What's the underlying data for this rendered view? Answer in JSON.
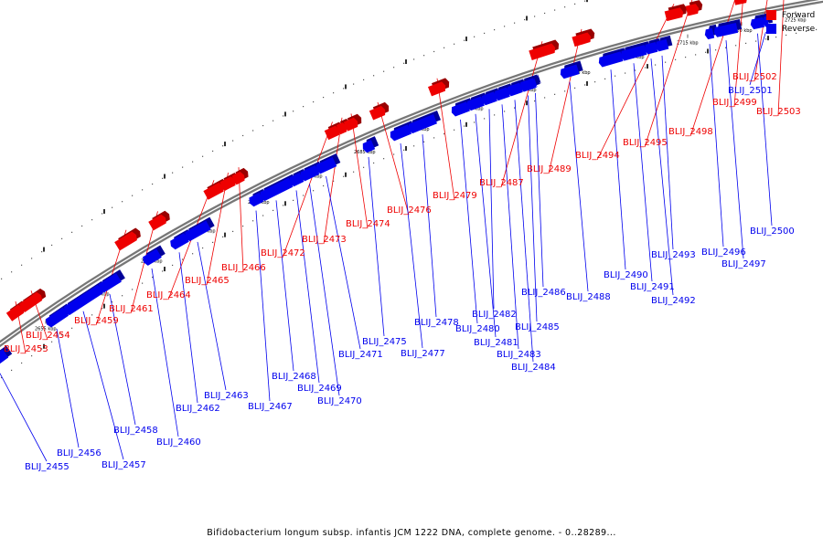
{
  "colors": {
    "forward": "#ee0000",
    "reverse": "#0000ee",
    "forward_side": "#990000",
    "reverse_side": "#000099",
    "backbone": "#777777"
  },
  "legend": {
    "forward": {
      "label": "Forward",
      "color": "#ee0000"
    },
    "reverse": {
      "label": "Reverse",
      "color": "#0000ee"
    }
  },
  "caption": "Bifidobacterium longum subsp. infantis JCM 1222 DNA, complete genome. - 0..28289...",
  "tick_labels": [
    "2655 kbp",
    "2660 kbp",
    "2665 kbp",
    "2670 kbp",
    "2675 kbp",
    "2680 kbp",
    "2685 kbp",
    "2690 kbp",
    "2695 kbp",
    "2700 kbp",
    "2705 kbp",
    "2710 kbp",
    "2715 kbp",
    "2720 kbp",
    "2725 kbp"
  ],
  "forward_genes": [
    {
      "name": "BLIJ_2453"
    },
    {
      "name": "BLIJ_2454"
    },
    {
      "name": "BLIJ_2459"
    },
    {
      "name": "BLIJ_2461"
    },
    {
      "name": "BLIJ_2464"
    },
    {
      "name": "BLIJ_2465"
    },
    {
      "name": "BLIJ_2466"
    },
    {
      "name": "BLIJ_2472"
    },
    {
      "name": "BLIJ_2473"
    },
    {
      "name": "BLIJ_2474"
    },
    {
      "name": "BLIJ_2476"
    },
    {
      "name": "BLIJ_2479"
    },
    {
      "name": "BLIJ_2487"
    },
    {
      "name": "BLIJ_2489"
    },
    {
      "name": "BLIJ_2494"
    },
    {
      "name": "BLIJ_2495"
    },
    {
      "name": "BLIJ_2498"
    },
    {
      "name": "BLIJ_2499"
    },
    {
      "name": "BLIJ_2502"
    },
    {
      "name": "BLIJ_2503"
    }
  ],
  "reverse_genes": [
    {
      "name": "BLIJ_2455"
    },
    {
      "name": "BLIJ_2456"
    },
    {
      "name": "BLIJ_2457"
    },
    {
      "name": "BLIJ_2458"
    },
    {
      "name": "BLIJ_2460"
    },
    {
      "name": "BLIJ_2462"
    },
    {
      "name": "BLIJ_2463"
    },
    {
      "name": "BLIJ_2467"
    },
    {
      "name": "BLIJ_2468"
    },
    {
      "name": "BLIJ_2469"
    },
    {
      "name": "BLIJ_2470"
    },
    {
      "name": "BLIJ_2471"
    },
    {
      "name": "BLIJ_2475"
    },
    {
      "name": "BLIJ_2477"
    },
    {
      "name": "BLIJ_2478"
    },
    {
      "name": "BLIJ_2480"
    },
    {
      "name": "BLIJ_2481"
    },
    {
      "name": "BLIJ_2482"
    },
    {
      "name": "BLIJ_2483"
    },
    {
      "name": "BLIJ_2484"
    },
    {
      "name": "BLIJ_2485"
    },
    {
      "name": "BLIJ_2486"
    },
    {
      "name": "BLIJ_2488"
    },
    {
      "name": "BLIJ_2490"
    },
    {
      "name": "BLIJ_2491"
    },
    {
      "name": "BLIJ_2492"
    },
    {
      "name": "BLIJ_2493"
    },
    {
      "name": "BLIJ_2496"
    },
    {
      "name": "BLIJ_2497"
    },
    {
      "name": "BLIJ_2500"
    },
    {
      "name": "BLIJ_2501"
    }
  ]
}
